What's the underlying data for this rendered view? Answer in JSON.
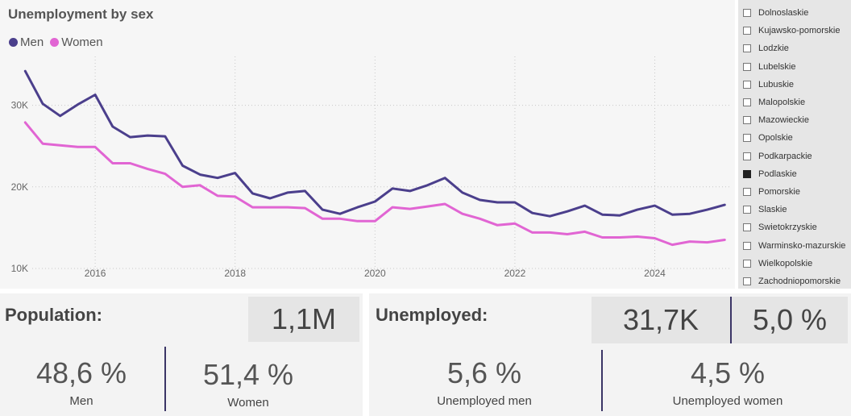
{
  "chart": {
    "title": "Unemployment by sex",
    "legend": [
      {
        "name": "Men",
        "color": "#4b3f8c"
      },
      {
        "name": "Women",
        "color": "#e165d3"
      }
    ]
  },
  "chart_data": {
    "type": "line",
    "title": "Unemployment by sex",
    "xlabel": "",
    "ylabel": "",
    "xlim": [
      2015.1,
      2025.1
    ],
    "ylim": [
      9500,
      36000
    ],
    "y_ticks": [
      10000,
      20000,
      30000
    ],
    "y_tick_labels": [
      "10K",
      "20K",
      "30K"
    ],
    "x_ticks": [
      2016,
      2018,
      2020,
      2022,
      2024
    ],
    "x_tick_labels": [
      "2016",
      "2018",
      "2020",
      "2022",
      "2024"
    ],
    "grid": true,
    "legend_position": "top-left",
    "series": [
      {
        "name": "Men",
        "color": "#4b3f8c",
        "x": [
          2015.0,
          2015.25,
          2015.5,
          2015.75,
          2016.0,
          2016.25,
          2016.5,
          2016.75,
          2017.0,
          2017.25,
          2017.5,
          2017.75,
          2018.0,
          2018.25,
          2018.5,
          2018.75,
          2019.0,
          2019.25,
          2019.5,
          2019.75,
          2020.0,
          2020.25,
          2020.5,
          2020.75,
          2021.0,
          2021.25,
          2021.5,
          2021.75,
          2022.0,
          2022.25,
          2022.5,
          2022.75,
          2023.0,
          2023.25,
          2023.5,
          2023.75,
          2024.0,
          2024.25,
          2024.5,
          2024.75,
          2025.0
        ],
        "values": [
          34200,
          30200,
          28700,
          30100,
          31300,
          27400,
          26100,
          26300,
          26200,
          22600,
          21500,
          21100,
          21700,
          19200,
          18600,
          19300,
          19500,
          17200,
          16700,
          17500,
          18200,
          19800,
          19500,
          20200,
          21100,
          19300,
          18400,
          18100,
          18100,
          16800,
          16400,
          17000,
          17700,
          16600,
          16500,
          17200,
          17700,
          16600,
          16700,
          17200,
          17800
        ]
      },
      {
        "name": "Women",
        "color": "#e165d3",
        "x": [
          2015.0,
          2015.25,
          2015.5,
          2015.75,
          2016.0,
          2016.25,
          2016.5,
          2016.75,
          2017.0,
          2017.25,
          2017.5,
          2017.75,
          2018.0,
          2018.25,
          2018.5,
          2018.75,
          2019.0,
          2019.25,
          2019.5,
          2019.75,
          2020.0,
          2020.25,
          2020.5,
          2020.75,
          2021.0,
          2021.25,
          2021.5,
          2021.75,
          2022.0,
          2022.25,
          2022.5,
          2022.75,
          2023.0,
          2023.25,
          2023.5,
          2023.75,
          2024.0,
          2024.25,
          2024.5,
          2024.75,
          2025.0
        ],
        "values": [
          27900,
          25300,
          25100,
          24900,
          24900,
          22900,
          22900,
          22200,
          21600,
          20000,
          20200,
          18900,
          18800,
          17500,
          17500,
          17500,
          17400,
          16100,
          16100,
          15800,
          15800,
          17500,
          17300,
          17600,
          17900,
          16700,
          16100,
          15300,
          15500,
          14400,
          14400,
          14200,
          14500,
          13800,
          13800,
          13900,
          13700,
          12900,
          13300,
          13200,
          13500
        ]
      }
    ]
  },
  "slicer": {
    "items": [
      {
        "label": "Dolnoslaskie",
        "checked": false
      },
      {
        "label": "Kujawsko-pomorskie",
        "checked": false
      },
      {
        "label": "Lodzkie",
        "checked": false
      },
      {
        "label": "Lubelskie",
        "checked": false
      },
      {
        "label": "Lubuskie",
        "checked": false
      },
      {
        "label": "Malopolskie",
        "checked": false
      },
      {
        "label": "Mazowieckie",
        "checked": false
      },
      {
        "label": "Opolskie",
        "checked": false
      },
      {
        "label": "Podkarpackie",
        "checked": false
      },
      {
        "label": "Podlaskie",
        "checked": true
      },
      {
        "label": "Pomorskie",
        "checked": false
      },
      {
        "label": "Slaskie",
        "checked": false
      },
      {
        "label": "Swietokrzyskie",
        "checked": false
      },
      {
        "label": "Warminsko-mazurskie",
        "checked": false
      },
      {
        "label": "Wielkopolskie",
        "checked": false
      },
      {
        "label": "Zachodniopomorskie",
        "checked": false
      }
    ]
  },
  "population": {
    "title": "Population:",
    "total": "1,1M",
    "men_pct": "48,6 %",
    "men_label": "Men",
    "women_pct": "51,4 %",
    "women_label": "Women"
  },
  "unemployed": {
    "title": "Unemployed:",
    "total": "31,7K",
    "rate": "5,0 %",
    "men_pct": "5,6 %",
    "men_label": "Unemployed men",
    "women_pct": "4,5 %",
    "women_label": "Unemployed women"
  }
}
